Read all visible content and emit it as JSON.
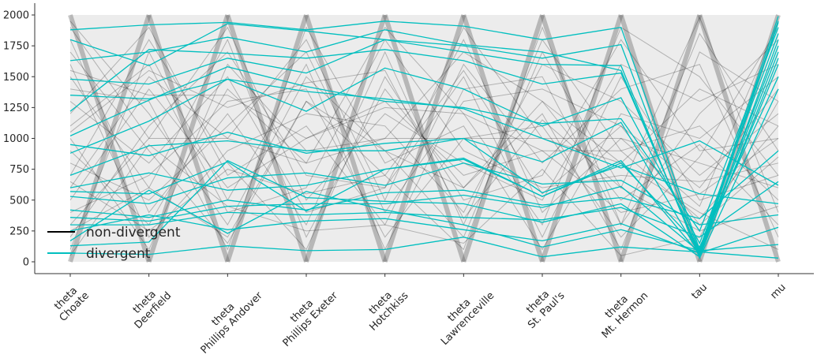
{
  "chart_data": {
    "type": "line",
    "subtype": "parallel-coordinates",
    "categories": [
      [
        "theta",
        "Choate"
      ],
      [
        "theta",
        "Deerfield"
      ],
      [
        "theta",
        "Phillips Andover"
      ],
      [
        "theta",
        "Phillips Exeter"
      ],
      [
        "theta",
        "Hotchkiss"
      ],
      [
        "theta",
        "Lawrenceville"
      ],
      [
        "theta",
        "St. Paul's"
      ],
      [
        "theta",
        "Mt. Hermon"
      ],
      [
        "tau"
      ],
      [
        "mu"
      ]
    ],
    "ylim": [
      -100,
      2100
    ],
    "yticks": [
      0,
      250,
      500,
      750,
      1000,
      1250,
      1500,
      1750,
      2000
    ],
    "grid": false,
    "legend": {
      "placement": "lower-left",
      "entries": [
        {
          "label": "non-divergent",
          "color": "#000000"
        },
        {
          "label": "divergent",
          "color": "#00bfbf"
        }
      ]
    },
    "series": [
      {
        "name": "non-divergent",
        "color": "#000000",
        "lines": [
          [
            1950,
            1200,
            300,
            1500,
            900,
            200,
            1700,
            600,
            1980,
            400
          ],
          [
            1700,
            900,
            150,
            1300,
            700,
            100,
            1900,
            300,
            1850,
            900
          ],
          [
            1500,
            600,
            1800,
            200,
            1400,
            600,
            1200,
            100,
            1700,
            1300
          ],
          [
            1200,
            1900,
            700,
            1100,
            300,
            1600,
            800,
            1400,
            1600,
            200
          ],
          [
            900,
            300,
            1400,
            800,
            1900,
            1200,
            300,
            1900,
            1500,
            700
          ],
          [
            600,
            1500,
            1000,
            1800,
            500,
            1900,
            1000,
            800,
            1400,
            1100
          ],
          [
            300,
            1000,
            1900,
            500,
            1200,
            800,
            500,
            1600,
            1300,
            1600
          ],
          [
            100,
            1700,
            500,
            1600,
            100,
            1400,
            1500,
            300,
            1200,
            1800
          ],
          [
            1800,
            400,
            1200,
            300,
            1700,
            300,
            1800,
            900,
            1100,
            500
          ],
          [
            1400,
            1300,
            100,
            1900,
            800,
            1100,
            100,
            1200,
            1000,
            1500
          ],
          [
            1000,
            100,
            1600,
            900,
            1000,
            1700,
            1300,
            500,
            950,
            300
          ],
          [
            700,
            1800,
            800,
            100,
            1500,
            500,
            700,
            1800,
            900,
            1000
          ],
          [
            400,
            700,
            1300,
            1400,
            200,
            1000,
            1100,
            200,
            850,
            1900
          ],
          [
            200,
            1100,
            1700,
            700,
            600,
            1800,
            400,
            1000,
            800,
            600
          ],
          [
            1600,
            200,
            900,
            1200,
            1100,
            400,
            1600,
            1300,
            700,
            1200
          ],
          [
            1100,
            1600,
            400,
            600,
            1800,
            900,
            600,
            700,
            650,
            800
          ],
          [
            800,
            500,
            1100,
            1700,
            400,
            1300,
            1400,
            1100,
            600,
            1400
          ],
          [
            500,
            1400,
            600,
            1000,
            1300,
            700,
            900,
            400,
            550,
            1000
          ],
          [
            1300,
            800,
            1500,
            400,
            600,
            1500,
            200,
            1500,
            500,
            700
          ],
          [
            1900,
            1000,
            1000,
            800,
            1000,
            1000,
            1000,
            1000,
            450,
            1950
          ],
          [
            250,
            600,
            200,
            1300,
            900,
            600,
            1300,
            800,
            400,
            100
          ],
          [
            1550,
            1350,
            1350,
            1000,
            1250,
            1200,
            900,
            900,
            350,
            1100
          ],
          [
            650,
            250,
            750,
            550,
            700,
            1550,
            550,
            1100,
            300,
            850
          ],
          [
            1050,
            1550,
            1250,
            1450,
            1550,
            350,
            1150,
            600,
            250,
            450
          ],
          [
            50,
            950,
            450,
            250,
            300,
            150,
            750,
            50,
            200,
            1300
          ]
        ]
      },
      {
        "name": "divergent",
        "color": "#00bfbf",
        "lines": [
          [
            1880,
            1920,
            1940,
            1880,
            1950,
            1910,
            1800,
            1900,
            100,
            1990
          ],
          [
            1800,
            1590,
            1930,
            1870,
            1800,
            1750,
            1650,
            1760,
            80,
            1950
          ],
          [
            1630,
            1700,
            1820,
            1700,
            1880,
            1760,
            1700,
            1550,
            50,
            1800
          ],
          [
            1480,
            1440,
            1650,
            1530,
            1800,
            1700,
            1600,
            1590,
            30,
            1400
          ],
          [
            1350,
            1320,
            1480,
            1220,
            1570,
            1400,
            1100,
            1330,
            150,
            1850
          ],
          [
            1220,
            1720,
            1690,
            1650,
            1720,
            1630,
            1440,
            1530,
            70,
            1700
          ],
          [
            1020,
            1310,
            1580,
            1420,
            1300,
            1250,
            1120,
            1160,
            250,
            1900
          ],
          [
            950,
            860,
            1050,
            880,
            960,
            1000,
            810,
            1130,
            60,
            1600
          ],
          [
            880,
            1140,
            1480,
            1380,
            1320,
            1240,
            1000,
            760,
            980,
            620
          ],
          [
            700,
            940,
            980,
            900,
            900,
            1000,
            560,
            780,
            550,
            470
          ],
          [
            600,
            720,
            580,
            620,
            750,
            840,
            530,
            820,
            60,
            1940
          ],
          [
            570,
            550,
            810,
            410,
            750,
            830,
            530,
            800,
            120,
            1500
          ],
          [
            530,
            470,
            680,
            720,
            620,
            800,
            630,
            660,
            300,
            380
          ],
          [
            420,
            360,
            500,
            420,
            560,
            580,
            460,
            520,
            350,
            900
          ],
          [
            360,
            330,
            450,
            470,
            470,
            540,
            440,
            610,
            80,
            1750
          ],
          [
            300,
            300,
            400,
            380,
            400,
            360,
            340,
            440,
            200,
            650
          ],
          [
            250,
            380,
            260,
            330,
            350,
            260,
            170,
            310,
            70,
            280
          ],
          [
            170,
            580,
            230,
            570,
            420,
            300,
            120,
            260,
            90,
            140
          ],
          [
            130,
            160,
            820,
            520,
            490,
            470,
            320,
            470,
            40,
            1650
          ],
          [
            70,
            60,
            130,
            90,
            100,
            200,
            40,
            120,
            80,
            30
          ]
        ]
      }
    ]
  }
}
